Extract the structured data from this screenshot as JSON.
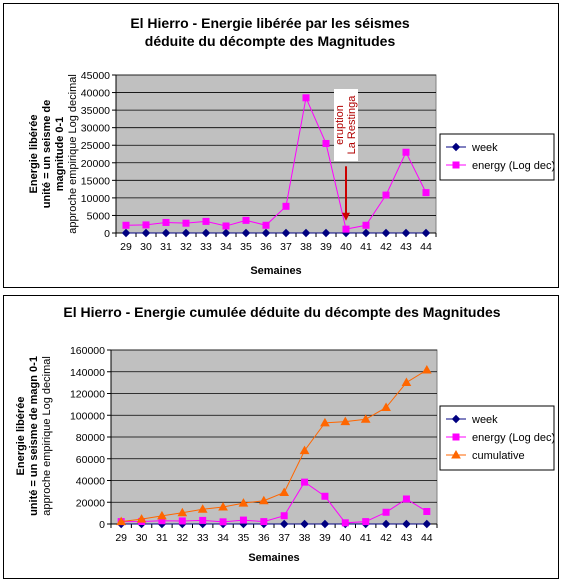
{
  "chart_data": [
    {
      "type": "line",
      "title": [
        "El Hierro - Energie libérée par les séismes",
        "déduite du décompte des Magnitudes"
      ],
      "xlabel": "Semaines",
      "ylabel": [
        "Energie libérée",
        "unité = un seisme de",
        "magnitude 0-1",
        "approche empirique Log decimal"
      ],
      "categories": [
        "29",
        "30",
        "31",
        "32",
        "33",
        "34",
        "35",
        "36",
        "37",
        "38",
        "39",
        "40",
        "41",
        "42",
        "43",
        "44"
      ],
      "ylim": [
        0,
        45000
      ],
      "yticks": [
        "0",
        "5000",
        "10000",
        "15000",
        "20000",
        "25000",
        "30000",
        "35000",
        "40000",
        "45000"
      ],
      "series": [
        {
          "name": "week",
          "color": "#000080",
          "marker": "diamond",
          "values": [
            0,
            0,
            0,
            0,
            0,
            0,
            0,
            0,
            0,
            0,
            0,
            0,
            0,
            0,
            0,
            0
          ]
        },
        {
          "name": "energy (Log dec)",
          "color": "#ff00ff",
          "marker": "square",
          "values": [
            2200,
            2300,
            3000,
            2800,
            3300,
            2000,
            3600,
            2200,
            7600,
            38500,
            25500,
            1100,
            2200,
            10800,
            23000,
            11500
          ]
        }
      ],
      "annotation": {
        "text": [
          "eruption",
          "La Restinga"
        ],
        "x": "40",
        "y_top": 19000,
        "y_bottom": 3500,
        "color": "#cc0000"
      },
      "legend_position": "right",
      "grid": true
    },
    {
      "type": "line",
      "title": [
        "El Hierro - Energie cumulée déduite du décompte des Magnitudes"
      ],
      "xlabel": "Semaines",
      "ylabel": [
        "Energie libérée",
        "unité = un seisme de magn 0-1",
        "approche empirique Log decimal"
      ],
      "categories": [
        "29",
        "30",
        "31",
        "32",
        "33",
        "34",
        "35",
        "36",
        "37",
        "38",
        "39",
        "40",
        "41",
        "42",
        "43",
        "44"
      ],
      "ylim": [
        0,
        160000
      ],
      "yticks": [
        "0",
        "20000",
        "40000",
        "60000",
        "80000",
        "100000",
        "120000",
        "140000",
        "160000"
      ],
      "series": [
        {
          "name": "week",
          "color": "#000080",
          "marker": "diamond",
          "values": [
            0,
            0,
            0,
            0,
            0,
            0,
            0,
            0,
            0,
            0,
            0,
            0,
            0,
            0,
            0,
            0
          ]
        },
        {
          "name": "energy (Log dec)",
          "color": "#ff00ff",
          "marker": "square",
          "values": [
            2200,
            2300,
            3000,
            2800,
            3300,
            2000,
            3600,
            2200,
            7600,
            38500,
            25500,
            1100,
            2200,
            10800,
            23000,
            11500
          ]
        },
        {
          "name": "cumulative",
          "color": "#ff6600",
          "marker": "triangle",
          "values": [
            2200,
            4500,
            7500,
            10300,
            13600,
            15600,
            19200,
            21400,
            29000,
            67500,
            93000,
            94100,
            96300,
            107100,
            130100,
            141600
          ]
        }
      ],
      "legend_position": "right",
      "grid": true
    }
  ]
}
